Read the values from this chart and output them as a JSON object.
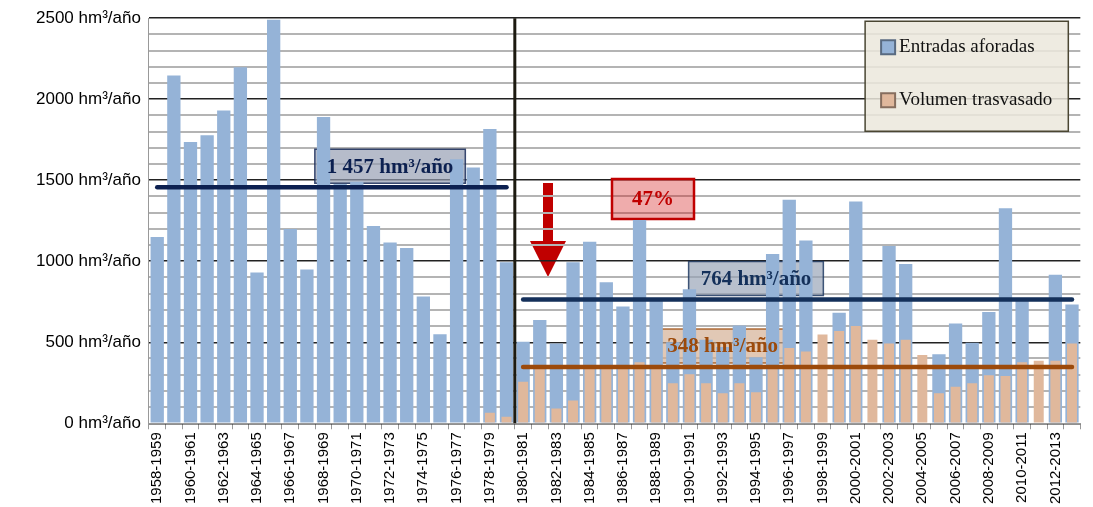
{
  "chart_data": {
    "type": "bar",
    "categories": [
      "1958-1959",
      null,
      "1960-1961",
      null,
      "1962-1963",
      null,
      "1964-1965",
      null,
      "1966-1967",
      null,
      "1968-1969",
      null,
      "1970-1971",
      null,
      "1972-1973",
      null,
      "1974-1975",
      null,
      "1976-1977",
      null,
      "1978-1979",
      null,
      "1980-1981",
      null,
      "1982-1983",
      null,
      "1984-1985",
      null,
      "1986-1987",
      null,
      "1988-1989",
      null,
      "1990-1991",
      null,
      "1992-1993",
      null,
      "1994-1995",
      null,
      "1996-1997",
      null,
      "1998-1999",
      null,
      "2000-2001",
      null,
      "2002-2003",
      null,
      "2004-2005",
      null,
      "2006-2007",
      null,
      "2008-2009",
      null,
      "2010-2011",
      null,
      "2012-2013",
      null
    ],
    "series": [
      {
        "name": "Entradas aforadas",
        "color": "#95b3d7",
        "values": [
          1150,
          2146,
          1736,
          1778,
          1930,
          2197,
          931,
          2490,
          1199,
          949,
          1890,
          1477,
          1491,
          1217,
          1116,
          1081,
          782,
          550,
          1629,
          1578,
          1816,
          994,
          503,
          637,
          493,
          994,
          1121,
          871,
          720,
          1255,
          760,
          500,
          827,
          515,
          470,
          604,
          408,
          1045,
          1379,
          1128,
          null,
          682,
          1368,
          null,
          1094,
          983,
          null,
          426,
          615,
          497,
          687,
          1327,
          760,
          null,
          916,
          733
        ]
      },
      {
        "name": "Volumen trasvasado",
        "color": "#e0b89c",
        "values": [
          null,
          null,
          null,
          null,
          null,
          null,
          null,
          null,
          null,
          null,
          null,
          null,
          null,
          null,
          null,
          null,
          null,
          null,
          null,
          null,
          65,
          40,
          256,
          340,
          91,
          140,
          340,
          340,
          340,
          376,
          340,
          247,
          303,
          247,
          185,
          247,
          192,
          340,
          465,
          443,
          548,
          570,
          600,
          515,
          493,
          515,
          421,
          185,
          225,
          247,
          296,
          292,
          376,
          386,
          386,
          493
        ]
      },
      {
        "type": "line",
        "color": "#0c2050",
        "values": [
          1457,
          1457,
          1457,
          1457,
          1457,
          1457,
          1457,
          1457,
          1457,
          1457,
          1457,
          1457,
          1457,
          1457,
          1457,
          1457,
          1457,
          1457,
          1457,
          1457,
          1457,
          1457,
          null,
          null,
          null,
          null,
          null,
          null,
          null,
          null,
          null,
          null,
          null,
          null,
          null,
          null,
          null,
          null,
          null,
          null,
          null,
          null,
          null,
          null,
          null,
          null,
          null,
          null,
          null,
          null,
          null,
          null,
          null,
          null,
          null,
          null
        ]
      },
      {
        "type": "line",
        "color": "#14305a",
        "values": [
          null,
          null,
          null,
          null,
          null,
          null,
          null,
          null,
          null,
          null,
          null,
          null,
          null,
          null,
          null,
          null,
          null,
          null,
          null,
          null,
          null,
          null,
          764,
          764,
          764,
          764,
          764,
          764,
          764,
          764,
          764,
          764,
          764,
          764,
          764,
          764,
          764,
          764,
          764,
          764,
          764,
          764,
          764,
          764,
          764,
          764,
          764,
          764,
          764,
          764,
          764,
          764,
          764,
          764,
          764,
          764
        ]
      },
      {
        "type": "line",
        "color": "#9c4a0b",
        "values": [
          null,
          null,
          null,
          null,
          null,
          null,
          null,
          null,
          null,
          null,
          null,
          null,
          null,
          null,
          null,
          null,
          null,
          null,
          null,
          null,
          null,
          null,
          348,
          348,
          348,
          348,
          348,
          348,
          348,
          348,
          348,
          348,
          348,
          348,
          348,
          348,
          348,
          348,
          348,
          348,
          348,
          348,
          348,
          348,
          348,
          348,
          348,
          348,
          348,
          348,
          348,
          348,
          348,
          348,
          348,
          348
        ]
      }
    ],
    "marker": "none",
    "ylim": [
      0,
      2500
    ],
    "yticks": [
      {
        "value": 0,
        "label": "0 hm³/año"
      },
      {
        "value": 100,
        "label": null
      },
      {
        "value": 200,
        "label": null
      },
      {
        "value": 300,
        "label": null
      },
      {
        "value": 400,
        "label": null
      },
      {
        "value": 500,
        "label": "500 hm³/año"
      },
      {
        "value": 600,
        "label": null
      },
      {
        "value": 700,
        "label": null
      },
      {
        "value": 800,
        "label": null
      },
      {
        "value": 900,
        "label": null
      },
      {
        "value": 1000,
        "label": "1000 hm³/año"
      },
      {
        "value": 1100,
        "label": null
      },
      {
        "value": 1200,
        "label": null
      },
      {
        "value": 1300,
        "label": null
      },
      {
        "value": 1400,
        "label": null
      },
      {
        "value": 1500,
        "label": "1500 hm³/año"
      },
      {
        "value": 1600,
        "label": null
      },
      {
        "value": 1700,
        "label": null
      },
      {
        "value": 1800,
        "label": null
      },
      {
        "value": 1900,
        "label": null
      },
      {
        "value": 2000,
        "label": "2000 hm³/año"
      },
      {
        "value": 2100,
        "label": null
      },
      {
        "value": 2200,
        "label": null
      },
      {
        "value": 2300,
        "label": null
      },
      {
        "value": 2400,
        "label": null
      },
      {
        "value": 2500,
        "label": "2500 hm³/año"
      }
    ],
    "grid": "y",
    "legend": "top right",
    "ref_lines": [
      {
        "axis": "x",
        "value": "1980-1981",
        "color": "#1c1a10"
      }
    ],
    "annotations": [
      {
        "text": "1 457 hm³/año",
        "x": "1972-1973",
        "y": 1457
      },
      {
        "text": "764 hm³/año",
        "x": "1994-1995",
        "y": 764
      },
      {
        "text": "348 hm³/año",
        "x": "1992-1993",
        "y": 348
      },
      "47%"
    ]
  }
}
